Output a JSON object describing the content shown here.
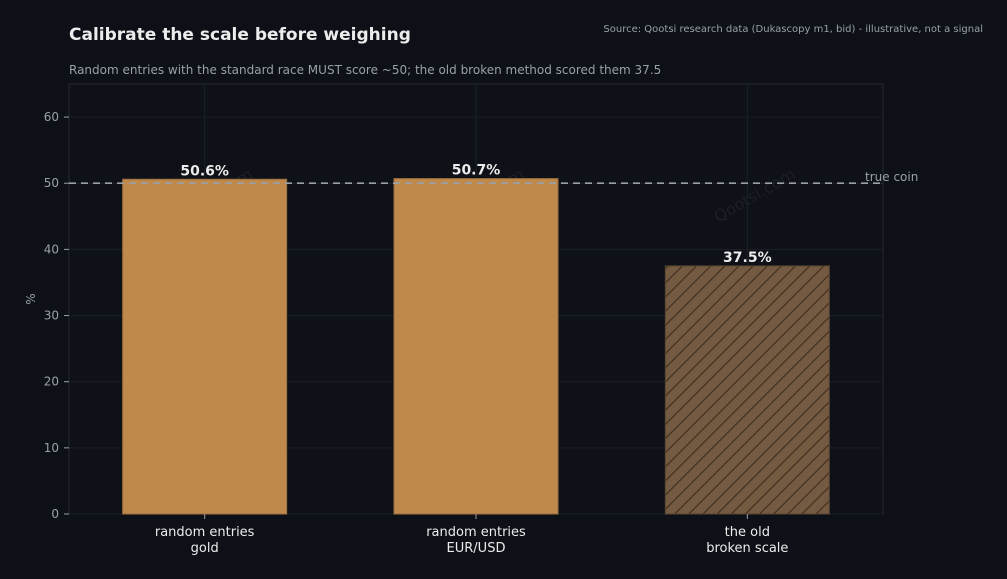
{
  "header": {
    "title": "Calibrate the scale before weighing",
    "subtitle": "Random entries with the standard race MUST score ~50; the old broken method scored them 37.5",
    "source": "Source: Qootsi research data (Dukascopy m1, bid) - illustrative, not a signal"
  },
  "chart_data": {
    "type": "bar",
    "categories": [
      "random entries\ngold",
      "random entries\nEUR/USD",
      "the old\nbroken scale"
    ],
    "values": [
      50.6,
      50.7,
      37.5
    ],
    "value_labels": [
      "50.6%",
      "50.7%",
      "37.5%"
    ],
    "bar_styles": [
      "solid",
      "solid",
      "hatched"
    ],
    "ylabel": "%",
    "ylim": [
      0,
      65
    ],
    "yticks": [
      0,
      10,
      20,
      30,
      40,
      50,
      60
    ],
    "reference_line": {
      "value": 50,
      "label": "true coin",
      "style": "dashed"
    },
    "watermark": "Qootsi.com",
    "grid": true,
    "colors": {
      "bar": "#bf894c",
      "bar_hatched": "#735a41",
      "hatch_line": "#3a2d20",
      "background": "#0d1016",
      "plot_background": "#0e1117",
      "grid": "#1b1f27",
      "axis_text": "#9aa0a6",
      "label_text": "#ececec",
      "reference_line": "#9aa0a6"
    }
  }
}
